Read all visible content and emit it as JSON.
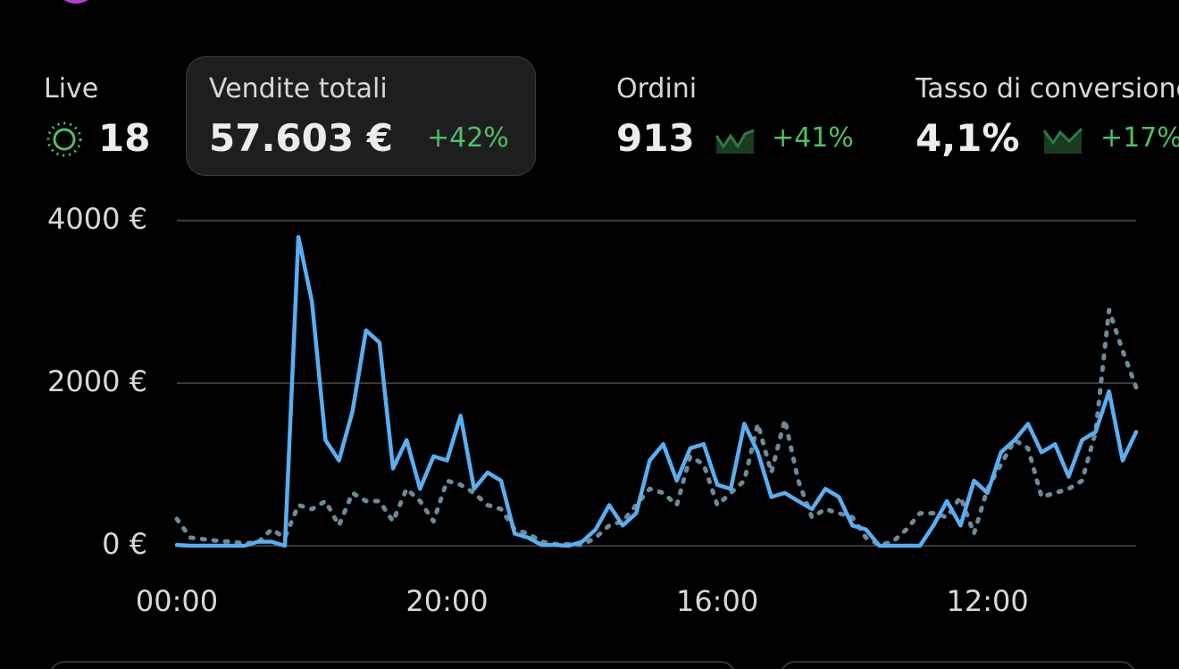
{
  "live": {
    "label": "Live",
    "value": "18"
  },
  "metrics": [
    {
      "label": "Vendite totali",
      "value": "57.603 €",
      "change": "+42%"
    },
    {
      "label": "Ordini",
      "value": "913",
      "change": "+41%"
    },
    {
      "label": "Tasso di conversione",
      "value": "4,1%",
      "change": "+17%"
    }
  ],
  "chart_data": {
    "type": "line",
    "categories": [
      "00:00",
      null,
      null,
      null,
      null,
      null,
      null,
      null,
      null,
      null,
      null,
      null,
      null,
      null,
      null,
      null,
      null,
      null,
      null,
      null,
      "20:00",
      null,
      null,
      null,
      null,
      null,
      null,
      null,
      null,
      null,
      null,
      null,
      null,
      null,
      null,
      null,
      null,
      null,
      null,
      null,
      "16:00",
      null,
      null,
      null,
      null,
      null,
      null,
      null,
      null,
      null,
      null,
      null,
      null,
      null,
      null,
      null,
      null,
      null,
      null,
      null,
      "12:00",
      null,
      null,
      null,
      null,
      null,
      null,
      null,
      null,
      null,
      null,
      null
    ],
    "series": [
      {
        "color": "#5aaef0",
        "style": "solid",
        "values": [
          10,
          0,
          0,
          0,
          0,
          0,
          50,
          50,
          0,
          3800,
          3000,
          1300,
          1050,
          1650,
          2650,
          2500,
          950,
          1300,
          700,
          1100,
          1050,
          1600,
          700,
          900,
          800,
          150,
          100,
          10,
          10,
          0,
          50,
          200,
          500,
          250,
          400,
          1050,
          1250,
          800,
          1200,
          1250,
          750,
          700,
          1500,
          1150,
          600,
          650,
          550,
          450,
          700,
          600,
          250,
          200,
          0,
          0,
          0,
          0,
          250,
          550,
          250,
          800,
          650,
          1150,
          1300,
          1500,
          1150,
          1250,
          850,
          1300,
          1400,
          1900,
          1050,
          1400
        ]
      },
      {
        "color": "#6d8a99",
        "style": "dotted",
        "values": [
          330,
          100,
          80,
          60,
          50,
          30,
          40,
          200,
          100,
          500,
          450,
          550,
          250,
          650,
          550,
          550,
          300,
          700,
          550,
          300,
          800,
          750,
          650,
          500,
          450,
          200,
          150,
          50,
          20,
          20,
          10,
          100,
          250,
          300,
          500,
          700,
          650,
          500,
          1100,
          1000,
          500,
          650,
          800,
          1500,
          900,
          1550,
          800,
          350,
          450,
          400,
          350,
          100,
          10,
          50,
          200,
          400,
          400,
          350,
          600,
          150,
          700,
          1000,
          1300,
          1200,
          600,
          650,
          700,
          800,
          1400,
          2900,
          2400,
          1950
        ]
      }
    ],
    "ylim": [
      0,
      4000
    ],
    "yticks": [
      {
        "value": 0,
        "label": "0 €"
      },
      {
        "value": 2000,
        "label": "2000 €"
      },
      {
        "value": 4000,
        "label": "4000 €"
      }
    ],
    "grid": true
  }
}
